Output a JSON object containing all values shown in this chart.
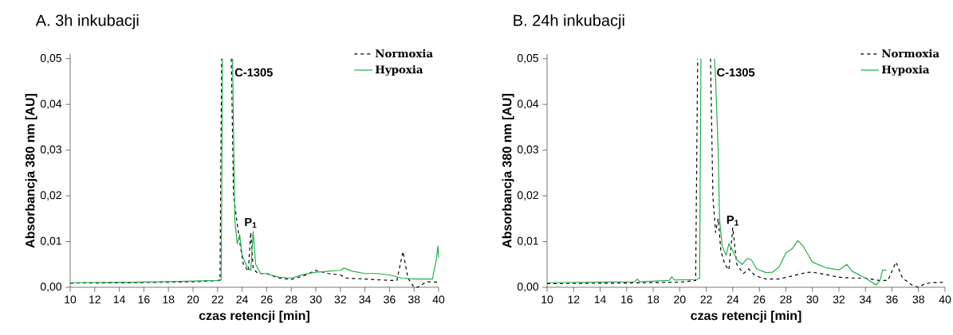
{
  "chart_data": [
    {
      "type": "line",
      "title": "A. 3h inkubacji",
      "xlabel": "czas retencji [min]",
      "ylabel": "Absorbancja 380 nm [AU]",
      "xlim": [
        10,
        40
      ],
      "ylim": [
        0,
        0.051
      ],
      "xticks": [
        10,
        12,
        14,
        16,
        18,
        20,
        22,
        24,
        26,
        28,
        30,
        32,
        34,
        36,
        38,
        40
      ],
      "yticks": [
        {
          "value": 0,
          "label": "0,00"
        },
        {
          "value": 0.01,
          "label": "0,01"
        },
        {
          "value": 0.02,
          "label": "0,02"
        },
        {
          "value": 0.03,
          "label": "0,03"
        },
        {
          "value": 0.04,
          "label": "0,04"
        },
        {
          "value": 0.05,
          "label": "0,05"
        }
      ],
      "legend": "top right",
      "grid": false,
      "annotations": [
        {
          "text": "C-1305",
          "x": 23.2,
          "y": 0.047
        },
        {
          "text": "P$_{1}$",
          "x": 24.7,
          "y": 0.0125
        }
      ],
      "series": [
        {
          "name": "Normoxia",
          "color": "#000000",
          "line_style": "dashed",
          "x": [
            10,
            15,
            20,
            22.2,
            22.33,
            22.7,
            23.12,
            23.3,
            23.6,
            23.8,
            24.1,
            24.5,
            24.7,
            24.9,
            25.3,
            26,
            27,
            28,
            29,
            30,
            31,
            32,
            32.5,
            34,
            36,
            36.6,
            37.1,
            37.5,
            38,
            38.3,
            39,
            40
          ],
          "values": [
            0.0009,
            0.001,
            0.0012,
            0.0015,
            0.05,
            null,
            0.05,
            0.02,
            0.014,
            0.01,
            0.005,
            0.0035,
            0.012,
            0.004,
            0.003,
            0.003,
            0.002,
            0.0017,
            0.0025,
            0.0037,
            0.003,
            0.0027,
            0.002,
            0.0018,
            0.0015,
            0.0015,
            0.0078,
            0.002,
            0.0,
            0.0,
            0.0012,
            0.0011
          ]
        },
        {
          "name": "Hypoxia",
          "color": "#22b14c",
          "line_style": "solid",
          "x": [
            10,
            15,
            19,
            22,
            22.3,
            22.4,
            22.8,
            23.22,
            23.4,
            23.6,
            23.8,
            24,
            24.4,
            24.7,
            24.9,
            25.1,
            25.5,
            26,
            27,
            28,
            29,
            30,
            31,
            32,
            32.3,
            33,
            34,
            35,
            36,
            37,
            38,
            39.5,
            39.8,
            39.95,
            40
          ],
          "values": [
            0.001,
            0.0011,
            0.0013,
            0.0015,
            0.0017,
            0.05,
            null,
            0.05,
            0.015,
            0.0095,
            0.0115,
            0.007,
            0.0045,
            0.0037,
            0.0122,
            0.005,
            0.003,
            0.003,
            0.0022,
            0.002,
            0.0028,
            0.0033,
            0.0035,
            0.0037,
            0.0042,
            0.0035,
            0.003,
            0.003,
            0.0027,
            0.002,
            0.0018,
            0.0018,
            0.006,
            0.009,
            0.0065
          ]
        }
      ]
    },
    {
      "type": "line",
      "title": "B. 24h inkubacji",
      "xlabel": "czas retencji [min]",
      "ylabel": "Absorbancja 380 nm [AU]",
      "xlim": [
        10,
        40
      ],
      "ylim": [
        0,
        0.051
      ],
      "xticks": [
        10,
        12,
        14,
        16,
        18,
        20,
        22,
        24,
        26,
        28,
        30,
        32,
        34,
        36,
        38,
        40
      ],
      "yticks": [
        {
          "value": 0,
          "label": "0,00"
        },
        {
          "value": 0.01,
          "label": "0,01"
        },
        {
          "value": 0.02,
          "label": "0,02"
        },
        {
          "value": 0.03,
          "label": "0,03"
        },
        {
          "value": 0.04,
          "label": "0,04"
        },
        {
          "value": 0.05,
          "label": "0,05"
        }
      ],
      "legend": "top right",
      "grid": false,
      "annotations": [
        {
          "text": "C-1305",
          "x": 22.6,
          "y": 0.047
        },
        {
          "text": "P$_{1}$",
          "x": 24.0,
          "y": 0.013
        }
      ],
      "series": [
        {
          "name": "Normoxia",
          "color": "#000000",
          "line_style": "dashed",
          "x": [
            10,
            15,
            20,
            21.2,
            21.35,
            21.8,
            22.32,
            22.5,
            22.7,
            22.9,
            23.1,
            23.4,
            23.7,
            24.0,
            24.3,
            24.8,
            25.2,
            25.7,
            26.5,
            27.5,
            28.5,
            29.5,
            30,
            31,
            32,
            33,
            34,
            35,
            35.7,
            36.3,
            36.8,
            37.5,
            38,
            38.5,
            39,
            40
          ],
          "values": [
            0.0008,
            0.0009,
            0.0011,
            0.0015,
            0.05,
            null,
            0.05,
            0.02,
            0.012,
            0.015,
            0.008,
            0.005,
            0.0038,
            0.013,
            0.005,
            0.003,
            0.004,
            0.0025,
            0.0018,
            0.0018,
            0.0025,
            0.0032,
            0.0033,
            0.0028,
            0.0022,
            0.002,
            0.002,
            0.0015,
            0.0015,
            0.0055,
            0.002,
            0.0005,
            0.0,
            0.0008,
            0.001,
            0.0011
          ]
        },
        {
          "name": "Hypoxia",
          "color": "#22b14c",
          "line_style": "solid",
          "x": [
            10,
            16.6,
            16.8,
            17,
            19.2,
            19.4,
            19.6,
            21.3,
            21.5,
            21.6,
            22.1,
            22.62,
            22.7,
            22.9,
            23.0,
            23.2,
            23.5,
            23.7,
            24,
            24.3,
            24.7,
            25.1,
            25.4,
            25.8,
            26.5,
            27,
            27.5,
            28,
            28.5,
            28.9,
            29.3,
            29.7,
            30,
            31,
            32,
            32.6,
            33,
            34,
            34.8,
            35.1,
            35.3,
            35.6
          ],
          "values": [
            0.001,
            0.0012,
            0.0018,
            0.0012,
            0.0015,
            0.0023,
            0.0016,
            0.0017,
            0.002,
            0.05,
            null,
            0.05,
            0.046,
            0.03,
            0.015,
            0.009,
            0.007,
            0.0095,
            0.008,
            0.006,
            0.005,
            0.0063,
            0.006,
            0.004,
            0.0032,
            0.0033,
            0.0045,
            0.0075,
            0.0085,
            0.0102,
            0.009,
            0.007,
            0.0055,
            0.0043,
            0.0038,
            0.005,
            0.0035,
            0.002,
            0.0005,
            0.0015,
            0.0038,
            0.0037
          ]
        }
      ]
    }
  ]
}
